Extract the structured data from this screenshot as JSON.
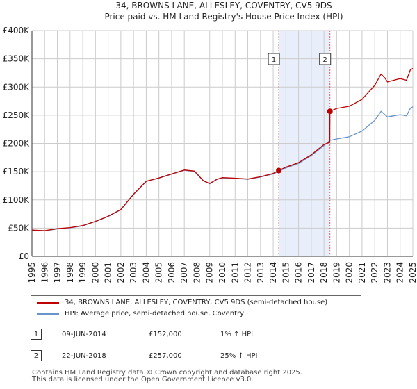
{
  "chart_data": {
    "type": "line",
    "title": "34, BROWNS LANE, ALLESLEY, COVENTRY, CV5 9DS",
    "subtitle": "Price paid vs. HM Land Registry's House Price Index (HPI)",
    "xlim": [
      1995,
      2025
    ],
    "ylim": [
      0,
      400000
    ],
    "x_ticks": [
      "1995",
      "1996",
      "1997",
      "1998",
      "1999",
      "2000",
      "2001",
      "2002",
      "2003",
      "2004",
      "2005",
      "2006",
      "2007",
      "2008",
      "2009",
      "2010",
      "2011",
      "2012",
      "2013",
      "2014",
      "2015",
      "2016",
      "2017",
      "2018",
      "2019",
      "2020",
      "2021",
      "2022",
      "2023",
      "2024",
      "2025"
    ],
    "y_ticks": [
      {
        "value": 0,
        "label": "£0"
      },
      {
        "value": 50000,
        "label": "£50K"
      },
      {
        "value": 100000,
        "label": "£100K"
      },
      {
        "value": 150000,
        "label": "£150K"
      },
      {
        "value": 200000,
        "label": "£200K"
      },
      {
        "value": 250000,
        "label": "£250K"
      },
      {
        "value": 300000,
        "label": "£300K"
      },
      {
        "value": 350000,
        "label": "£350K"
      },
      {
        "value": 400000,
        "label": "£400K"
      }
    ],
    "grid": true,
    "shaded_region": [
      2014.44,
      2018.47
    ],
    "series": [
      {
        "name": "34, BROWNS LANE, ALLESLEY, COVENTRY, CV5 9DS (semi-detached house)",
        "color": "#c00000",
        "points": [
          [
            1995.0,
            46500
          ],
          [
            1996.0,
            45500
          ],
          [
            1997.0,
            49000
          ],
          [
            1998.0,
            51000
          ],
          [
            1999.0,
            54500
          ],
          [
            2000.0,
            62000
          ],
          [
            2001.0,
            71000
          ],
          [
            2002.0,
            83000
          ],
          [
            2003.0,
            110000
          ],
          [
            2004.0,
            133000
          ],
          [
            2005.0,
            139000
          ],
          [
            2006.0,
            146000
          ],
          [
            2007.0,
            153000
          ],
          [
            2007.8,
            151000
          ],
          [
            2008.5,
            134000
          ],
          [
            2009.0,
            129000
          ],
          [
            2009.6,
            137000
          ],
          [
            2010.0,
            139500
          ],
          [
            2011.0,
            138500
          ],
          [
            2012.0,
            137000
          ],
          [
            2013.0,
            141000
          ],
          [
            2014.0,
            147000
          ],
          [
            2014.44,
            152000
          ],
          [
            2015.0,
            158000
          ],
          [
            2016.0,
            166000
          ],
          [
            2017.0,
            180000
          ],
          [
            2018.0,
            198000
          ],
          [
            2018.46,
            202000
          ],
          [
            2018.47,
            257000
          ],
          [
            2019.0,
            262000
          ],
          [
            2020.0,
            266000
          ],
          [
            2021.0,
            278000
          ],
          [
            2022.0,
            303000
          ],
          [
            2022.5,
            323000
          ],
          [
            2022.8,
            316000
          ],
          [
            2023.0,
            309000
          ],
          [
            2023.5,
            312000
          ],
          [
            2024.0,
            315000
          ],
          [
            2024.5,
            312000
          ],
          [
            2024.8,
            330000
          ],
          [
            2025.0,
            333000
          ]
        ]
      },
      {
        "name": "HPI: Average price, semi-detached house, Coventry",
        "color": "#6a95cc",
        "points": [
          [
            1995.0,
            46000
          ],
          [
            1996.0,
            45000
          ],
          [
            1997.0,
            48500
          ],
          [
            1998.0,
            50500
          ],
          [
            1999.0,
            54000
          ],
          [
            2000.0,
            61500
          ],
          [
            2001.0,
            70500
          ],
          [
            2002.0,
            82500
          ],
          [
            2003.0,
            109500
          ],
          [
            2004.0,
            132500
          ],
          [
            2005.0,
            138500
          ],
          [
            2006.0,
            145500
          ],
          [
            2007.0,
            152500
          ],
          [
            2007.8,
            150500
          ],
          [
            2008.5,
            133500
          ],
          [
            2009.0,
            128500
          ],
          [
            2009.6,
            136500
          ],
          [
            2010.0,
            139000
          ],
          [
            2011.0,
            138000
          ],
          [
            2012.0,
            136500
          ],
          [
            2013.0,
            140500
          ],
          [
            2014.0,
            146000
          ],
          [
            2014.44,
            150500
          ],
          [
            2015.0,
            156500
          ],
          [
            2016.0,
            164500
          ],
          [
            2017.0,
            178500
          ],
          [
            2018.0,
            196000
          ],
          [
            2018.47,
            205500
          ],
          [
            2019.0,
            208000
          ],
          [
            2020.0,
            212000
          ],
          [
            2021.0,
            222000
          ],
          [
            2022.0,
            241000
          ],
          [
            2022.5,
            257000
          ],
          [
            2022.8,
            251000
          ],
          [
            2023.0,
            247000
          ],
          [
            2023.5,
            249000
          ],
          [
            2024.0,
            251000
          ],
          [
            2024.5,
            249000
          ],
          [
            2024.8,
            262000
          ],
          [
            2025.0,
            265000
          ]
        ]
      }
    ],
    "sales": [
      {
        "num": "1",
        "x": 2014.44,
        "value": 152000,
        "date": "09-JUN-2014",
        "price": "£152,000",
        "hpi": "1% ↑ HPI"
      },
      {
        "num": "2",
        "x": 2018.47,
        "value": 257000,
        "date": "22-JUN-2018",
        "price": "£257,000",
        "hpi": "25% ↑ HPI"
      }
    ]
  },
  "colors": {
    "shade": "#e8eefa",
    "grid": "#cccccc",
    "marker_line": "#d45f5f"
  },
  "footer": {
    "line1": "Contains HM Land Registry data © Crown copyright and database right 2025.",
    "line2": "This data is licensed under the Open Government Licence v3.0."
  }
}
